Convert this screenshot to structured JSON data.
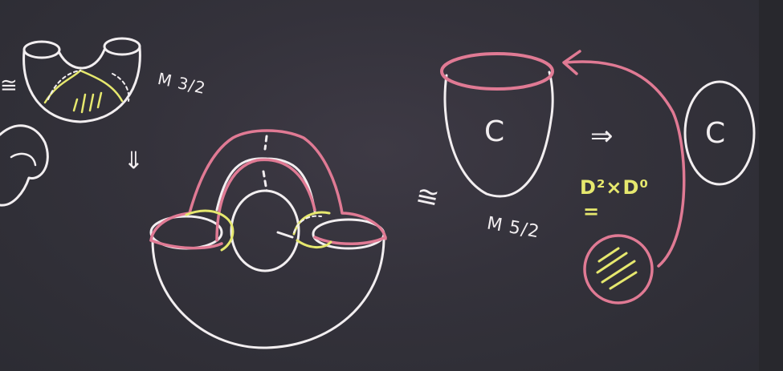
{
  "board": {
    "labels": {
      "m_three_halves": "M 3/2",
      "m_five_halves": "M 5/2",
      "d2_times_d0": "D²×D⁰"
    },
    "symbols": {
      "congruent_left": "≅",
      "congruent_mid": "≅",
      "implies_down": "⇒",
      "implies_right": "⇒",
      "equals_under_d": "=",
      "circle_letter_1": "C",
      "circle_letter_2": "C"
    },
    "colors": {
      "chalk_white": "#f2eef0",
      "chalk_pink": "#e07a94",
      "chalk_yellow": "#e6e86e",
      "board_background": "#34323b"
    }
  }
}
